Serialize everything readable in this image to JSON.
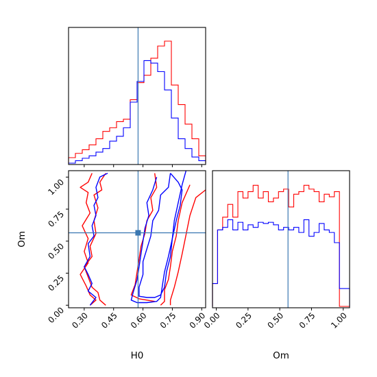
{
  "chart_data": [
    {
      "panel": "H0 marginal",
      "type": "histogram",
      "xlim": [
        0.22,
        0.92
      ],
      "bins": [
        0.22,
        0.255,
        0.29,
        0.325,
        0.36,
        0.395,
        0.43,
        0.465,
        0.5,
        0.535,
        0.57,
        0.605,
        0.64,
        0.675,
        0.71,
        0.745,
        0.78,
        0.815,
        0.85,
        0.885,
        0.92
      ],
      "series": [
        {
          "color": "#ff0000",
          "values": [
            0.045,
            0.08,
            0.11,
            0.15,
            0.2,
            0.26,
            0.29,
            0.34,
            0.36,
            0.52,
            0.66,
            0.72,
            0.86,
            0.96,
            1.0,
            0.64,
            0.48,
            0.32,
            0.2,
            0.06
          ]
        },
        {
          "color": "#0000ff",
          "values": [
            0.0,
            0.02,
            0.04,
            0.06,
            0.09,
            0.12,
            0.18,
            0.22,
            0.29,
            0.5,
            0.67,
            0.84,
            0.82,
            0.75,
            0.6,
            0.37,
            0.2,
            0.12,
            0.05,
            0.02
          ]
        }
      ],
      "truth_line": {
        "x": 0.575,
        "color": "#3a77b1"
      },
      "xticks": [
        0.3,
        0.45,
        0.6,
        0.75,
        0.9
      ]
    },
    {
      "panel": "H0 vs Om joint",
      "type": "contour",
      "xlim": [
        0.22,
        0.92
      ],
      "ylim": [
        -0.02,
        1.05
      ],
      "xlabel": "H0",
      "ylabel": "Om",
      "xtick_labels": [
        "0.30",
        "0.45",
        "0.60",
        "0.75",
        "0.90"
      ],
      "ytick_labels": [
        "0.00",
        "0.25",
        "0.50",
        "0.75",
        "1.00"
      ],
      "truth_point": {
        "x": 0.575,
        "y": 0.565,
        "color": "#3a77b1"
      },
      "contours": [
        {
          "color": "#ff0000",
          "points": [
            [
              0.34,
              1.03
            ],
            [
              0.32,
              0.96
            ],
            [
              0.28,
              0.92
            ],
            [
              0.32,
              0.88
            ],
            [
              0.31,
              0.8
            ],
            [
              0.33,
              0.72
            ],
            [
              0.29,
              0.62
            ],
            [
              0.32,
              0.52
            ],
            [
              0.3,
              0.42
            ],
            [
              0.32,
              0.33
            ],
            [
              0.28,
              0.24
            ],
            [
              0.31,
              0.15
            ],
            [
              0.33,
              0.08
            ],
            [
              0.36,
              0.04
            ],
            [
              0.33,
              0.0
            ]
          ]
        },
        {
          "color": "#ff0000",
          "points": [
            [
              0.41,
              1.03
            ],
            [
              0.38,
              0.96
            ],
            [
              0.39,
              0.9
            ],
            [
              0.35,
              0.86
            ],
            [
              0.37,
              0.76
            ],
            [
              0.35,
              0.66
            ],
            [
              0.36,
              0.56
            ],
            [
              0.33,
              0.46
            ],
            [
              0.34,
              0.38
            ],
            [
              0.3,
              0.3
            ],
            [
              0.32,
              0.22
            ],
            [
              0.34,
              0.14
            ],
            [
              0.37,
              0.1
            ],
            [
              0.38,
              0.04
            ],
            [
              0.41,
              0.0
            ]
          ]
        },
        {
          "color": "#0000ff",
          "points": [
            [
              0.42,
              1.03
            ],
            [
              0.38,
              1.0
            ],
            [
              0.36,
              0.92
            ],
            [
              0.37,
              0.84
            ],
            [
              0.35,
              0.78
            ],
            [
              0.36,
              0.7
            ],
            [
              0.34,
              0.62
            ],
            [
              0.35,
              0.54
            ],
            [
              0.32,
              0.48
            ],
            [
              0.33,
              0.38
            ],
            [
              0.3,
              0.3
            ],
            [
              0.32,
              0.24
            ],
            [
              0.34,
              0.17
            ],
            [
              0.32,
              0.11
            ],
            [
              0.36,
              0.06
            ],
            [
              0.33,
              0.0
            ]
          ]
        },
        {
          "color": "#ff0000",
          "points": [
            [
              0.92,
              0.9
            ],
            [
              0.87,
              0.84
            ],
            [
              0.84,
              0.7
            ],
            [
              0.82,
              0.55
            ],
            [
              0.8,
              0.4
            ],
            [
              0.78,
              0.26
            ],
            [
              0.76,
              0.14
            ],
            [
              0.74,
              0.04
            ],
            [
              0.74,
              0.0
            ]
          ]
        },
        {
          "color": "#ff0000",
          "points": [
            [
              0.84,
              0.94
            ],
            [
              0.8,
              0.8
            ],
            [
              0.78,
              0.66
            ],
            [
              0.77,
              0.54
            ],
            [
              0.75,
              0.42
            ],
            [
              0.74,
              0.3
            ],
            [
              0.73,
              0.2
            ],
            [
              0.71,
              0.12
            ],
            [
              0.71,
              0.03
            ],
            [
              0.69,
              0.0
            ]
          ]
        },
        {
          "color": "#ff0000",
          "points": [
            [
              0.66,
              1.03
            ],
            [
              0.67,
              0.92
            ],
            [
              0.64,
              0.84
            ],
            [
              0.65,
              0.74
            ],
            [
              0.62,
              0.66
            ],
            [
              0.61,
              0.56
            ],
            [
              0.59,
              0.46
            ],
            [
              0.58,
              0.36
            ],
            [
              0.57,
              0.26
            ],
            [
              0.56,
              0.16
            ],
            [
              0.54,
              0.08
            ],
            [
              0.58,
              0.05
            ],
            [
              0.62,
              0.04
            ],
            [
              0.66,
              0.03
            ]
          ]
        },
        {
          "color": "#0000ff",
          "points": [
            [
              0.74,
              1.03
            ],
            [
              0.73,
              0.92
            ],
            [
              0.69,
              0.86
            ],
            [
              0.68,
              0.74
            ],
            [
              0.65,
              0.66
            ],
            [
              0.64,
              0.54
            ],
            [
              0.62,
              0.44
            ],
            [
              0.6,
              0.34
            ],
            [
              0.6,
              0.24
            ],
            [
              0.58,
              0.14
            ],
            [
              0.58,
              0.07
            ],
            [
              0.62,
              0.06
            ],
            [
              0.66,
              0.06
            ],
            [
              0.69,
              0.08
            ],
            [
              0.71,
              0.14
            ],
            [
              0.72,
              0.26
            ],
            [
              0.74,
              0.38
            ],
            [
              0.75,
              0.52
            ],
            [
              0.77,
              0.66
            ],
            [
              0.79,
              0.78
            ],
            [
              0.8,
              0.9
            ],
            [
              0.78,
              0.96
            ],
            [
              0.74,
              1.03
            ]
          ]
        },
        {
          "color": "#0000ff",
          "points": [
            [
              0.82,
              1.05
            ],
            [
              0.8,
              0.94
            ],
            [
              0.78,
              0.8
            ],
            [
              0.76,
              0.66
            ],
            [
              0.75,
              0.52
            ],
            [
              0.73,
              0.38
            ],
            [
              0.71,
              0.26
            ],
            [
              0.7,
              0.16
            ],
            [
              0.69,
              0.06
            ],
            [
              0.67,
              0.03
            ],
            [
              0.62,
              0.02
            ],
            [
              0.57,
              0.02
            ],
            [
              0.54,
              0.04
            ],
            [
              0.55,
              0.1
            ],
            [
              0.57,
              0.2
            ],
            [
              0.58,
              0.3
            ],
            [
              0.59,
              0.4
            ],
            [
              0.6,
              0.5
            ],
            [
              0.61,
              0.6
            ],
            [
              0.63,
              0.7
            ],
            [
              0.62,
              0.8
            ],
            [
              0.65,
              0.9
            ],
            [
              0.67,
              1.0
            ]
          ]
        }
      ]
    },
    {
      "panel": "Om marginal",
      "type": "histogram",
      "xlim": [
        -0.03,
        1.05
      ],
      "xlabel": "Om",
      "xtick_labels": [
        "0.00",
        "0.25",
        "0.50",
        "0.75",
        "1.00"
      ],
      "bins": [
        -0.03,
        0.01,
        0.05,
        0.09,
        0.13,
        0.17,
        0.21,
        0.25,
        0.29,
        0.33,
        0.37,
        0.41,
        0.45,
        0.49,
        0.53,
        0.57,
        0.61,
        0.65,
        0.69,
        0.73,
        0.77,
        0.81,
        0.85,
        0.89,
        0.93,
        0.97,
        1.01,
        1.05
      ],
      "series": [
        {
          "color": "#ff0000",
          "values": [
            0.18,
            0.6,
            0.7,
            0.8,
            0.7,
            0.9,
            0.85,
            0.9,
            0.95,
            0.85,
            0.9,
            0.82,
            0.85,
            0.9,
            0.92,
            0.78,
            0.88,
            0.9,
            0.95,
            0.92,
            0.9,
            0.82,
            0.88,
            0.86,
            0.9,
            0.0,
            0.0
          ]
        },
        {
          "color": "#0000ff",
          "values": [
            0.18,
            0.6,
            0.62,
            0.68,
            0.6,
            0.66,
            0.6,
            0.64,
            0.62,
            0.66,
            0.65,
            0.66,
            0.64,
            0.6,
            0.62,
            0.6,
            0.62,
            0.58,
            0.68,
            0.55,
            0.58,
            0.65,
            0.6,
            0.58,
            0.5,
            0.14,
            0.14
          ]
        }
      ],
      "truth_line": {
        "x": 0.565,
        "color": "#3a77b1"
      }
    }
  ]
}
